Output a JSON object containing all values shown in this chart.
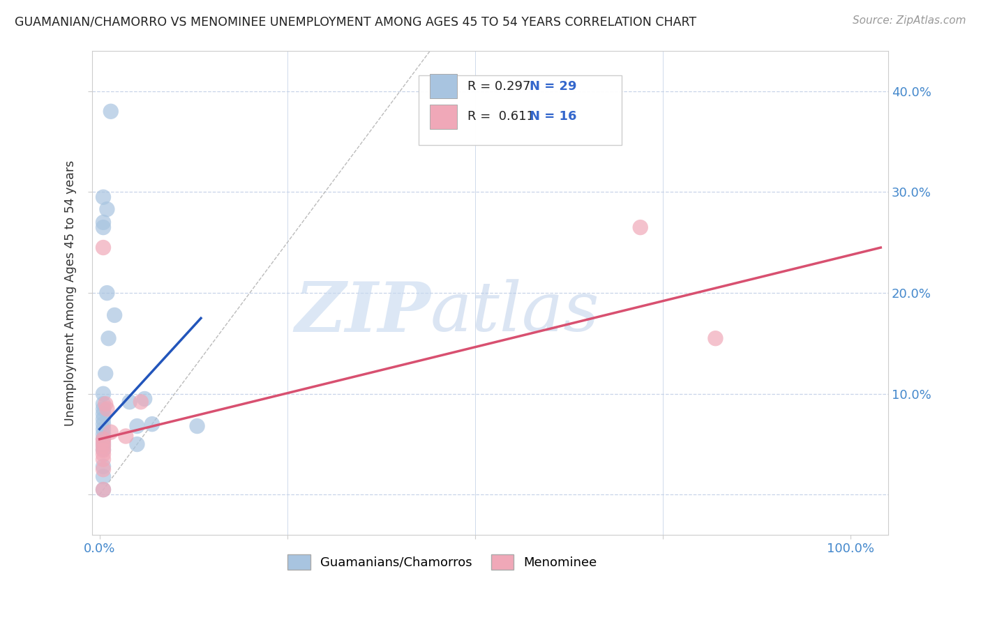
{
  "title": "GUAMANIAN/CHAMORRO VS MENOMINEE UNEMPLOYMENT AMONG AGES 45 TO 54 YEARS CORRELATION CHART",
  "source": "Source: ZipAtlas.com",
  "ylabel": "Unemployment Among Ages 45 to 54 years",
  "x_ticks": [
    0.0,
    0.25,
    0.5,
    0.75,
    1.0
  ],
  "x_tick_labels": [
    "0.0%",
    "",
    "",
    "",
    "100.0%"
  ],
  "y_ticks": [
    0.0,
    0.1,
    0.2,
    0.3,
    0.4
  ],
  "y_tick_labels_right": [
    "",
    "10.0%",
    "20.0%",
    "30.0%",
    "40.0%"
  ],
  "xlim": [
    -0.01,
    1.05
  ],
  "ylim": [
    -0.04,
    0.44
  ],
  "blue_R": 0.297,
  "blue_N": 29,
  "pink_R": 0.611,
  "pink_N": 16,
  "blue_color": "#a8c4e0",
  "blue_line_color": "#2255bb",
  "pink_color": "#f0a8b8",
  "pink_line_color": "#d85070",
  "blue_scatter_x": [
    0.015,
    0.005,
    0.01,
    0.005,
    0.005,
    0.01,
    0.02,
    0.012,
    0.008,
    0.005,
    0.005,
    0.005,
    0.005,
    0.005,
    0.005,
    0.005,
    0.005,
    0.005,
    0.005,
    0.04,
    0.05,
    0.05,
    0.06,
    0.07,
    0.005,
    0.13,
    0.005,
    0.005,
    0.005
  ],
  "blue_scatter_y": [
    0.38,
    0.295,
    0.283,
    0.27,
    0.265,
    0.2,
    0.178,
    0.155,
    0.12,
    0.1,
    0.09,
    0.085,
    0.08,
    0.075,
    0.07,
    0.065,
    0.06,
    0.055,
    0.05,
    0.092,
    0.068,
    0.05,
    0.095,
    0.07,
    0.045,
    0.068,
    0.028,
    0.018,
    0.005
  ],
  "pink_scatter_x": [
    0.005,
    0.008,
    0.01,
    0.015,
    0.005,
    0.005,
    0.005,
    0.005,
    0.005,
    0.005,
    0.035,
    0.055,
    0.005,
    0.005,
    0.72,
    0.82
  ],
  "pink_scatter_y": [
    0.245,
    0.09,
    0.085,
    0.062,
    0.055,
    0.052,
    0.048,
    0.044,
    0.04,
    0.035,
    0.058,
    0.092,
    0.025,
    0.005,
    0.265,
    0.155
  ],
  "blue_trend_x": [
    0.0,
    0.135
  ],
  "blue_trend_y": [
    0.065,
    0.175
  ],
  "pink_trend_x": [
    0.0,
    1.04
  ],
  "pink_trend_y": [
    0.055,
    0.245
  ],
  "legend_labels": [
    "Guamanians/Chamorros",
    "Menominee"
  ],
  "background_color": "#ffffff",
  "grid_color": "#c8d4e8",
  "dashed_line_x": [
    0.0,
    0.44
  ],
  "dashed_line_y": [
    0.0,
    0.44
  ]
}
